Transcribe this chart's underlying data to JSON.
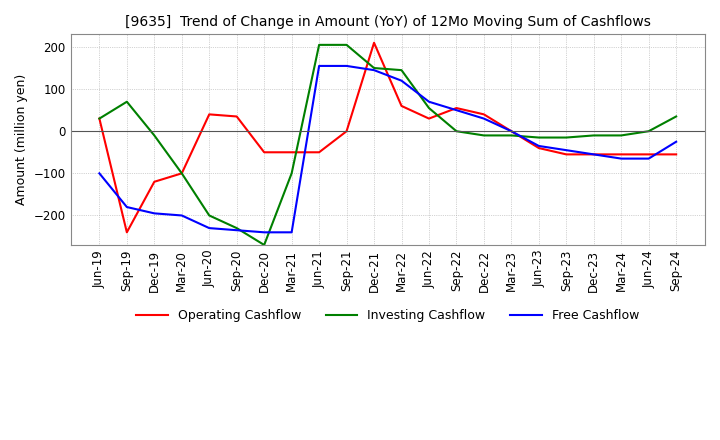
{
  "title": "[9635]  Trend of Change in Amount (YoY) of 12Mo Moving Sum of Cashflows",
  "ylabel": "Amount (million yen)",
  "x_labels": [
    "Jun-19",
    "Sep-19",
    "Dec-19",
    "Mar-20",
    "Jun-20",
    "Sep-20",
    "Dec-20",
    "Mar-21",
    "Jun-21",
    "Sep-21",
    "Dec-21",
    "Mar-22",
    "Jun-22",
    "Sep-22",
    "Dec-22",
    "Mar-23",
    "Jun-23",
    "Sep-23",
    "Dec-23",
    "Mar-24",
    "Jun-24",
    "Sep-24"
  ],
  "operating": [
    30,
    -240,
    -120,
    -100,
    40,
    35,
    -50,
    -50,
    -50,
    0,
    210,
    60,
    30,
    55,
    40,
    0,
    -40,
    -55,
    -55,
    -55,
    -55,
    -55
  ],
  "investing": [
    30,
    70,
    -10,
    -100,
    -200,
    -230,
    -270,
    -100,
    205,
    205,
    150,
    145,
    55,
    0,
    -10,
    -10,
    -15,
    -15,
    -10,
    -10,
    0,
    35
  ],
  "free": [
    -100,
    -180,
    -195,
    -200,
    -230,
    -235,
    -240,
    -240,
    155,
    155,
    145,
    120,
    70,
    50,
    30,
    0,
    -35,
    -45,
    -55,
    -65,
    -65,
    -25
  ],
  "ylim": [
    -270,
    230
  ],
  "yticks": [
    -200,
    -100,
    0,
    100,
    200
  ],
  "colors": {
    "operating": "#ff0000",
    "investing": "#008000",
    "free": "#0000ff"
  },
  "grid_color": "#aaaaaa",
  "background_color": "#ffffff",
  "line_width": 1.5
}
